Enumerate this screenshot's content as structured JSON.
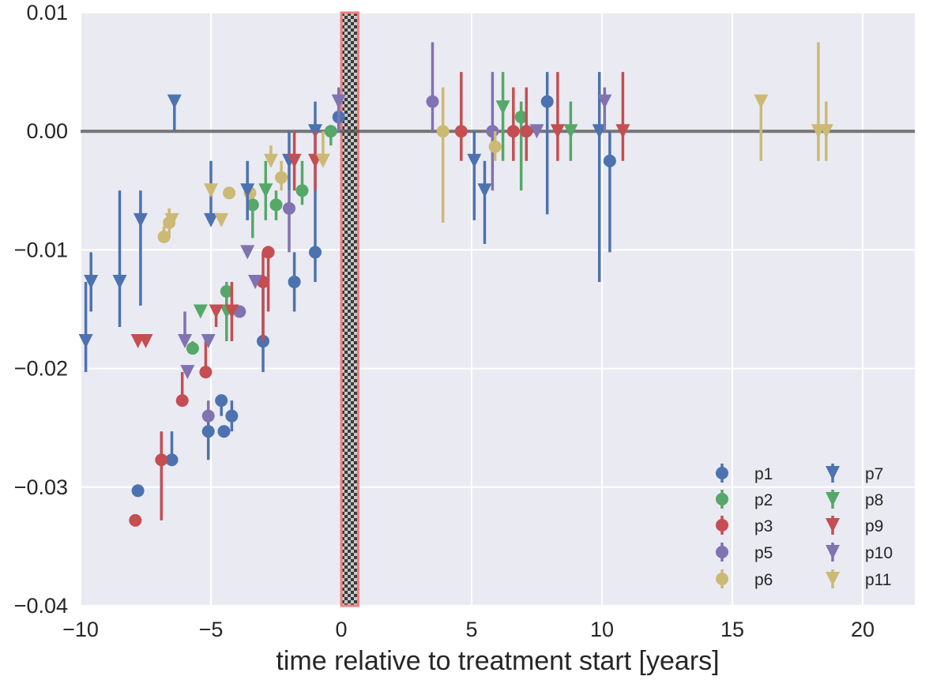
{
  "chart_data": {
    "type": "scatter",
    "title": "",
    "xlabel": "time relative to treatment start [years]",
    "ylabel": "",
    "xlim": [
      -10,
      22
    ],
    "ylim": [
      -0.04,
      0.01
    ],
    "xticks": [
      -10,
      -5,
      0,
      5,
      10,
      15,
      20
    ],
    "xtick_labels": [
      "−10",
      "−5",
      "0",
      "5",
      "10",
      "15",
      "20"
    ],
    "yticks": [
      0.01,
      0.0,
      -0.01,
      -0.02,
      -0.03,
      -0.04
    ],
    "ytick_labels": [
      "0.01",
      "0.00",
      "−0.01",
      "−0.02",
      "−0.03",
      "−0.04"
    ],
    "grid": true,
    "reference_line_y": 0.0,
    "treatment_band_x": [
      0.0,
      0.65
    ],
    "legend_position": "lower-right",
    "colors": {
      "background": "#eaeaf2",
      "grid": "#ffffff",
      "reference_line": "#555555",
      "band_border": "#f08080",
      "band_dark": "#3a3a3a",
      "band_light": "#c8c8c8"
    },
    "series": [
      {
        "name": "p1",
        "marker": "circle",
        "color": "#4c72b0",
        "points": [
          {
            "x": -7.8,
            "y": -0.0303,
            "lo": -0.0303,
            "hi": -0.0303
          },
          {
            "x": -6.5,
            "y": -0.0277,
            "lo": -0.0277,
            "hi": -0.0253
          },
          {
            "x": -5.1,
            "y": -0.0253,
            "lo": -0.0277,
            "hi": -0.024
          },
          {
            "x": -4.6,
            "y": -0.0227,
            "lo": -0.024,
            "hi": -0.0227
          },
          {
            "x": -4.5,
            "y": -0.0253,
            "lo": -0.0253,
            "hi": -0.0253
          },
          {
            "x": -4.2,
            "y": -0.024,
            "lo": -0.0253,
            "hi": -0.0227
          },
          {
            "x": -3.0,
            "y": -0.0177,
            "lo": -0.0203,
            "hi": -0.0127
          },
          {
            "x": -1.8,
            "y": -0.0127,
            "lo": -0.0152,
            "hi": -0.0102
          },
          {
            "x": -1.0,
            "y": -0.0102,
            "lo": -0.0127,
            "hi": -0.0025
          },
          {
            "x": -0.1,
            "y": 0.0012,
            "lo": 0.0,
            "hi": 0.0025
          },
          {
            "x": 7.9,
            "y": 0.0025,
            "lo": -0.007,
            "hi": 0.005
          },
          {
            "x": 10.3,
            "y": -0.0025,
            "lo": -0.0102,
            "hi": 0.0
          }
        ]
      },
      {
        "name": "p2",
        "marker": "circle",
        "color": "#55a868",
        "points": [
          {
            "x": -5.7,
            "y": -0.0183,
            "lo": -0.0183,
            "hi": -0.0177
          },
          {
            "x": -4.4,
            "y": -0.0135,
            "lo": -0.0152,
            "hi": -0.0127
          },
          {
            "x": -3.4,
            "y": -0.0062,
            "lo": -0.009,
            "hi": -0.005
          },
          {
            "x": -2.5,
            "y": -0.0062,
            "lo": -0.0075,
            "hi": -0.005
          },
          {
            "x": -1.5,
            "y": -0.005,
            "lo": -0.0062,
            "hi": -0.0025
          },
          {
            "x": -0.4,
            "y": 0.0,
            "lo": -0.0012,
            "hi": 0.0
          },
          {
            "x": 6.9,
            "y": 0.0012,
            "lo": -0.005,
            "hi": 0.0025
          }
        ]
      },
      {
        "name": "p3",
        "marker": "circle",
        "color": "#c44e52",
        "points": [
          {
            "x": -7.9,
            "y": -0.0328,
            "lo": -0.0328,
            "hi": -0.0328
          },
          {
            "x": -6.9,
            "y": -0.0277,
            "lo": -0.0328,
            "hi": -0.0253
          },
          {
            "x": -6.1,
            "y": -0.0227,
            "lo": -0.0227,
            "hi": -0.0203
          },
          {
            "x": -5.2,
            "y": -0.0203,
            "lo": -0.0203,
            "hi": -0.0177
          },
          {
            "x": -3.0,
            "y": -0.0127,
            "lo": -0.0177,
            "hi": -0.0102
          },
          {
            "x": -2.8,
            "y": -0.0102,
            "lo": -0.0152,
            "hi": -0.0102
          },
          {
            "x": 4.6,
            "y": 0.0,
            "lo": -0.0025,
            "hi": 0.005
          },
          {
            "x": 6.6,
            "y": 0.0,
            "lo": -0.0025,
            "hi": 0.0037
          },
          {
            "x": 7.1,
            "y": 0.0,
            "lo": -0.0025,
            "hi": 0.0037
          }
        ]
      },
      {
        "name": "p5",
        "marker": "circle",
        "color": "#8172b2",
        "points": [
          {
            "x": -5.1,
            "y": -0.024,
            "lo": -0.024,
            "hi": -0.0227
          },
          {
            "x": -3.9,
            "y": -0.0152,
            "lo": -0.0152,
            "hi": -0.0152
          },
          {
            "x": -2.0,
            "y": -0.0065,
            "lo": -0.0102,
            "hi": -0.005
          },
          {
            "x": 3.5,
            "y": 0.0025,
            "lo": 0.0,
            "hi": 0.0075
          },
          {
            "x": 5.8,
            "y": 0.0,
            "lo": -0.005,
            "hi": 0.005
          }
        ]
      },
      {
        "name": "p6",
        "marker": "circle",
        "color": "#ccb974",
        "points": [
          {
            "x": -6.8,
            "y": -0.0089,
            "lo": -0.0089,
            "hi": -0.008
          },
          {
            "x": -6.6,
            "y": -0.0077,
            "lo": -0.009,
            "hi": -0.0065
          },
          {
            "x": -4.3,
            "y": -0.0052,
            "lo": -0.0052,
            "hi": -0.0052
          },
          {
            "x": -3.5,
            "y": -0.0052,
            "lo": -0.0052,
            "hi": -0.0052
          },
          {
            "x": -2.3,
            "y": -0.0039,
            "lo": -0.005,
            "hi": -0.0025
          },
          {
            "x": 3.9,
            "y": 0.0,
            "lo": -0.0077,
            "hi": 0.0037
          },
          {
            "x": 5.9,
            "y": -0.0013,
            "lo": -0.0025,
            "hi": 0.0
          }
        ]
      },
      {
        "name": "p7",
        "marker": "triangle",
        "color": "#4c72b0",
        "points": [
          {
            "x": -9.8,
            "y": -0.0177,
            "lo": -0.0203,
            "hi": -0.0127
          },
          {
            "x": -9.6,
            "y": -0.0127,
            "lo": -0.0152,
            "hi": -0.0102
          },
          {
            "x": -8.5,
            "y": -0.0127,
            "lo": -0.0165,
            "hi": -0.005
          },
          {
            "x": -7.7,
            "y": -0.0075,
            "lo": -0.0147,
            "hi": -0.005
          },
          {
            "x": -6.4,
            "y": 0.0025,
            "lo": 0.0,
            "hi": 0.0025
          },
          {
            "x": -5.0,
            "y": -0.0075,
            "lo": -0.0075,
            "hi": -0.0025
          },
          {
            "x": -3.6,
            "y": -0.005,
            "lo": -0.0075,
            "hi": -0.0025
          },
          {
            "x": -2.0,
            "y": -0.0025,
            "lo": -0.005,
            "hi": 0.0
          },
          {
            "x": -1.0,
            "y": 0.0,
            "lo": -0.0025,
            "hi": 0.0025
          },
          {
            "x": 5.1,
            "y": -0.0025,
            "lo": -0.0075,
            "hi": 0.0
          },
          {
            "x": 5.5,
            "y": -0.005,
            "lo": -0.0095,
            "hi": -0.0025
          },
          {
            "x": 9.9,
            "y": 0.0,
            "lo": -0.0127,
            "hi": 0.005
          }
        ]
      },
      {
        "name": "p8",
        "marker": "triangle",
        "color": "#55a868",
        "points": [
          {
            "x": -5.4,
            "y": -0.0152,
            "lo": -0.0152,
            "hi": -0.0152
          },
          {
            "x": -4.4,
            "y": -0.0152,
            "lo": -0.0177,
            "hi": -0.014
          },
          {
            "x": -2.9,
            "y": -0.005,
            "lo": -0.0075,
            "hi": -0.0025
          },
          {
            "x": 6.2,
            "y": 0.002,
            "lo": -0.0025,
            "hi": 0.005
          },
          {
            "x": 8.8,
            "y": 0.0,
            "lo": -0.0025,
            "hi": 0.0025
          }
        ]
      },
      {
        "name": "p9",
        "marker": "triangle",
        "color": "#c44e52",
        "points": [
          {
            "x": -7.8,
            "y": -0.0177,
            "lo": -0.0177,
            "hi": -0.0177
          },
          {
            "x": -7.5,
            "y": -0.0177,
            "lo": -0.0177,
            "hi": -0.0177
          },
          {
            "x": -4.8,
            "y": -0.0152,
            "lo": -0.0165,
            "hi": -0.0152
          },
          {
            "x": -4.2,
            "y": -0.0152,
            "lo": -0.0177,
            "hi": -0.0127
          },
          {
            "x": -1.8,
            "y": -0.0025,
            "lo": -0.005,
            "hi": 0.0
          },
          {
            "x": -1.0,
            "y": -0.0025,
            "lo": -0.005,
            "hi": 0.0
          },
          {
            "x": 8.3,
            "y": 0.0,
            "lo": -0.0025,
            "hi": 0.005
          },
          {
            "x": 10.8,
            "y": 0.0,
            "lo": -0.0025,
            "hi": 0.005
          }
        ]
      },
      {
        "name": "p10",
        "marker": "triangle",
        "color": "#8172b2",
        "points": [
          {
            "x": -6.0,
            "y": -0.0177,
            "lo": -0.0177,
            "hi": -0.0152
          },
          {
            "x": -5.9,
            "y": -0.0203,
            "lo": -0.0203,
            "hi": -0.0203
          },
          {
            "x": -5.1,
            "y": -0.0177,
            "lo": -0.0177,
            "hi": -0.0177
          },
          {
            "x": -3.6,
            "y": -0.0102,
            "lo": -0.0102,
            "hi": -0.0102
          },
          {
            "x": -3.3,
            "y": -0.0127,
            "lo": -0.0127,
            "hi": -0.0127
          },
          {
            "x": -0.1,
            "y": 0.0025,
            "lo": 0.0,
            "hi": 0.0037
          },
          {
            "x": 7.5,
            "y": 0.0,
            "lo": 0.0,
            "hi": 0.0
          },
          {
            "x": 10.1,
            "y": 0.0025,
            "lo": 0.0,
            "hi": 0.0037
          }
        ]
      },
      {
        "name": "p11",
        "marker": "triangle",
        "color": "#ccb974",
        "points": [
          {
            "x": -6.5,
            "y": -0.0075,
            "lo": -0.0075,
            "hi": -0.0075
          },
          {
            "x": -5.0,
            "y": -0.005,
            "lo": -0.005,
            "hi": -0.005
          },
          {
            "x": -4.6,
            "y": -0.0075,
            "lo": -0.0075,
            "hi": -0.0075
          },
          {
            "x": -2.7,
            "y": -0.0025,
            "lo": -0.0025,
            "hi": -0.0012
          },
          {
            "x": -0.7,
            "y": -0.0025,
            "lo": -0.0025,
            "hi": 0.0
          },
          {
            "x": 16.1,
            "y": 0.0025,
            "lo": -0.0025,
            "hi": 0.0025
          },
          {
            "x": 18.3,
            "y": 0.0,
            "lo": -0.0025,
            "hi": 0.0075
          },
          {
            "x": 18.6,
            "y": 0.0,
            "lo": -0.0025,
            "hi": 0.0025
          }
        ]
      }
    ]
  }
}
